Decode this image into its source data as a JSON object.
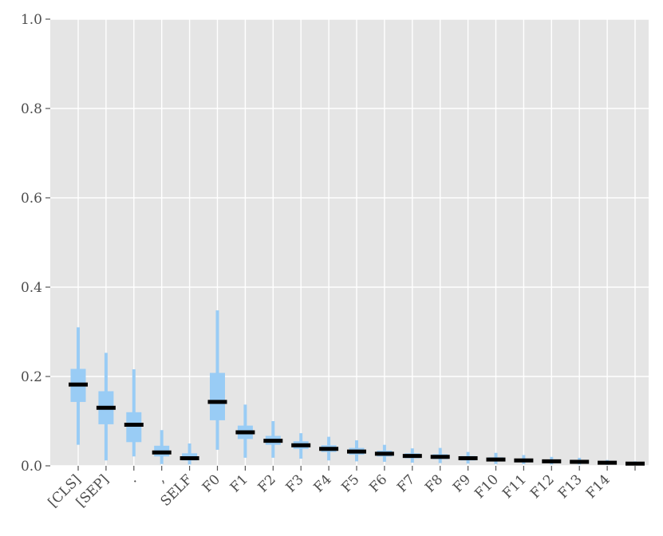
{
  "chart_data": {
    "type": "box",
    "categories": [
      "[CLS]",
      "[SEP]",
      ".",
      ",",
      "SELF",
      "F0",
      "F1",
      "F2",
      "F3",
      "F4",
      "F5",
      "F6",
      "F7",
      "F8",
      "F9",
      "F10",
      "F11",
      "F12",
      "F13",
      "F14",
      ""
    ],
    "series": [
      {
        "median": [
          0.182,
          0.13,
          0.092,
          0.03,
          0.017,
          0.143,
          0.075,
          0.056,
          0.046,
          0.038,
          0.032,
          0.027,
          0.022,
          0.02,
          0.017,
          0.014,
          0.012,
          0.01,
          0.009,
          0.007,
          0.005
        ],
        "q1": [
          0.143,
          0.093,
          0.053,
          0.021,
          0.012,
          0.102,
          0.06,
          0.047,
          0.038,
          0.031,
          0.025,
          0.021,
          0.017,
          0.015,
          0.012,
          0.01,
          0.008,
          0.007,
          0.006,
          0.005,
          0.004
        ],
        "q3": [
          0.217,
          0.167,
          0.12,
          0.045,
          0.028,
          0.208,
          0.09,
          0.067,
          0.055,
          0.046,
          0.04,
          0.034,
          0.028,
          0.026,
          0.022,
          0.019,
          0.016,
          0.013,
          0.012,
          0.009,
          0.006
        ],
        "whisker_low": [
          0.047,
          0.012,
          0.021,
          0.004,
          0.003,
          0.036,
          0.018,
          0.018,
          0.016,
          0.012,
          0.01,
          0.009,
          0.007,
          0.006,
          0.005,
          0.004,
          0.004,
          0.003,
          0.003,
          0.002,
          0.002
        ],
        "whisker_high": [
          0.31,
          0.253,
          0.216,
          0.08,
          0.05,
          0.348,
          0.137,
          0.1,
          0.073,
          0.065,
          0.057,
          0.047,
          0.039,
          0.04,
          0.031,
          0.029,
          0.024,
          0.02,
          0.018,
          0.013,
          0.01
        ]
      }
    ],
    "ylim": [
      0.0,
      1.0
    ],
    "yticks": [
      "0.0",
      "0.2",
      "0.4",
      "0.6",
      "0.8",
      "1.0"
    ],
    "grid": true,
    "colors": {
      "box": "#99ccf5",
      "median": "#000000",
      "background": "#e5e5e5",
      "grid": "#ffffff"
    }
  }
}
